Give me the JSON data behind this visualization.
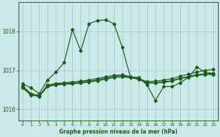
{
  "title": "Graphe pression niveau de la mer (hPa)",
  "bg_color": "#cce8e8",
  "grid_color": "#aacfcf",
  "line_color": "#1a5c1a",
  "x_ticks": [
    0,
    1,
    2,
    3,
    4,
    5,
    6,
    7,
    8,
    9,
    10,
    11,
    12,
    13,
    14,
    15,
    16,
    17,
    18,
    19,
    20,
    21,
    22,
    23
  ],
  "ylim": [
    1015.7,
    1018.75
  ],
  "yticks": [
    1016,
    1017,
    1018
  ],
  "line1": [
    1016.65,
    1016.55,
    1016.4,
    1016.75,
    1016.95,
    1017.2,
    1018.05,
    1017.5,
    1018.2,
    1018.28,
    1018.3,
    1018.2,
    1017.6,
    1016.82,
    1016.82,
    1016.62,
    1016.22,
    1016.58,
    1016.58,
    1016.68,
    1016.82,
    1017.08,
    1016.95,
    1016.92
  ],
  "line2": [
    1016.6,
    1016.4,
    1016.35,
    1016.62,
    1016.66,
    1016.68,
    1016.7,
    1016.72,
    1016.75,
    1016.79,
    1016.83,
    1016.87,
    1016.88,
    1016.84,
    1016.78,
    1016.71,
    1016.72,
    1016.75,
    1016.78,
    1016.85,
    1016.9,
    1016.95,
    1017.0,
    1017.02
  ],
  "line3": [
    1016.55,
    1016.36,
    1016.33,
    1016.58,
    1016.62,
    1016.64,
    1016.65,
    1016.67,
    1016.7,
    1016.73,
    1016.77,
    1016.81,
    1016.83,
    1016.81,
    1016.77,
    1016.67,
    1016.68,
    1016.71,
    1016.73,
    1016.8,
    1016.84,
    1016.89,
    1016.91,
    1016.91
  ],
  "line4": [
    1016.57,
    1016.37,
    1016.33,
    1016.6,
    1016.64,
    1016.66,
    1016.67,
    1016.69,
    1016.72,
    1016.75,
    1016.8,
    1016.84,
    1016.86,
    1016.82,
    1016.77,
    1016.69,
    1016.67,
    1016.69,
    1016.72,
    1016.79,
    1016.82,
    1016.87,
    1016.89,
    1016.89
  ]
}
